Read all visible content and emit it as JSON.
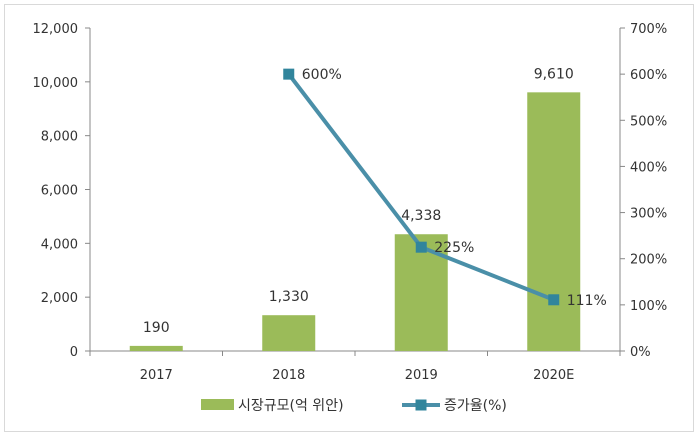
{
  "chart_data": {
    "type": "bar",
    "categories": [
      "2017",
      "2018",
      "2019",
      "2020E"
    ],
    "series": [
      {
        "name": "시장규모(억 위안)",
        "type": "bar",
        "axis": "left",
        "values": [
          190,
          1330,
          4338,
          9610
        ],
        "data_labels": [
          "190",
          "1,330",
          "4,338",
          "9,610"
        ],
        "color": "#9bbb59"
      },
      {
        "name": "증가율(%)",
        "type": "line",
        "axis": "right",
        "values": [
          null,
          600,
          225,
          111
        ],
        "data_labels": [
          "",
          "600%",
          "225%",
          "111%"
        ],
        "color": "#4a8fa8",
        "marker_color": "#31859c"
      }
    ],
    "y_left": {
      "ylim": [
        0,
        12000
      ],
      "ticks": [
        0,
        2000,
        4000,
        6000,
        8000,
        10000,
        12000
      ],
      "tick_labels": [
        "0",
        "2,000",
        "4,000",
        "6,000",
        "8,000",
        "10,000",
        "12,000"
      ]
    },
    "y_right": {
      "ylim": [
        0,
        700
      ],
      "ticks": [
        0,
        100,
        200,
        300,
        400,
        500,
        600,
        700
      ],
      "tick_labels": [
        "0%",
        "100%",
        "200%",
        "300%",
        "400%",
        "500%",
        "600%",
        "700%"
      ]
    },
    "title": "",
    "xlabel": "",
    "ylabel": "",
    "legend_position": "bottom",
    "grid": false
  }
}
